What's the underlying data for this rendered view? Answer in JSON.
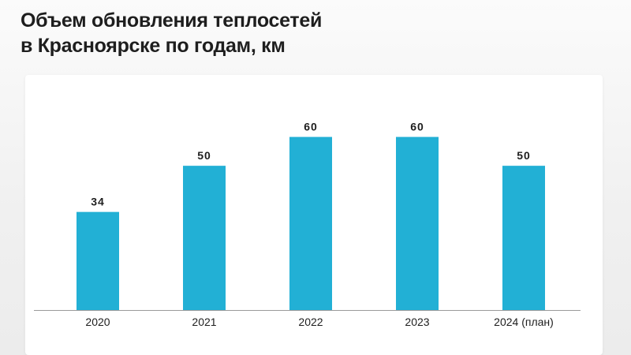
{
  "title": {
    "line1": "Объем обновления теплосетей",
    "line2": "в Красноярске по годам, км"
  },
  "colors": {
    "bar": "#22b0d5",
    "axis": "#9a9a9a",
    "text": "#1e1e1e"
  },
  "chart_data": {
    "type": "bar",
    "title": "Объем обновления теплосетей в Красноярске по годам, км",
    "categories": [
      "2020",
      "2021",
      "2022",
      "2023",
      "2024 (план)"
    ],
    "values": [
      34,
      50,
      60,
      60,
      50
    ],
    "data_labels": [
      "34",
      "50",
      "60",
      "60",
      "50"
    ],
    "xlabel": "",
    "ylabel": "",
    "ylim": [
      0,
      70
    ],
    "grid": false,
    "legend": "none"
  }
}
